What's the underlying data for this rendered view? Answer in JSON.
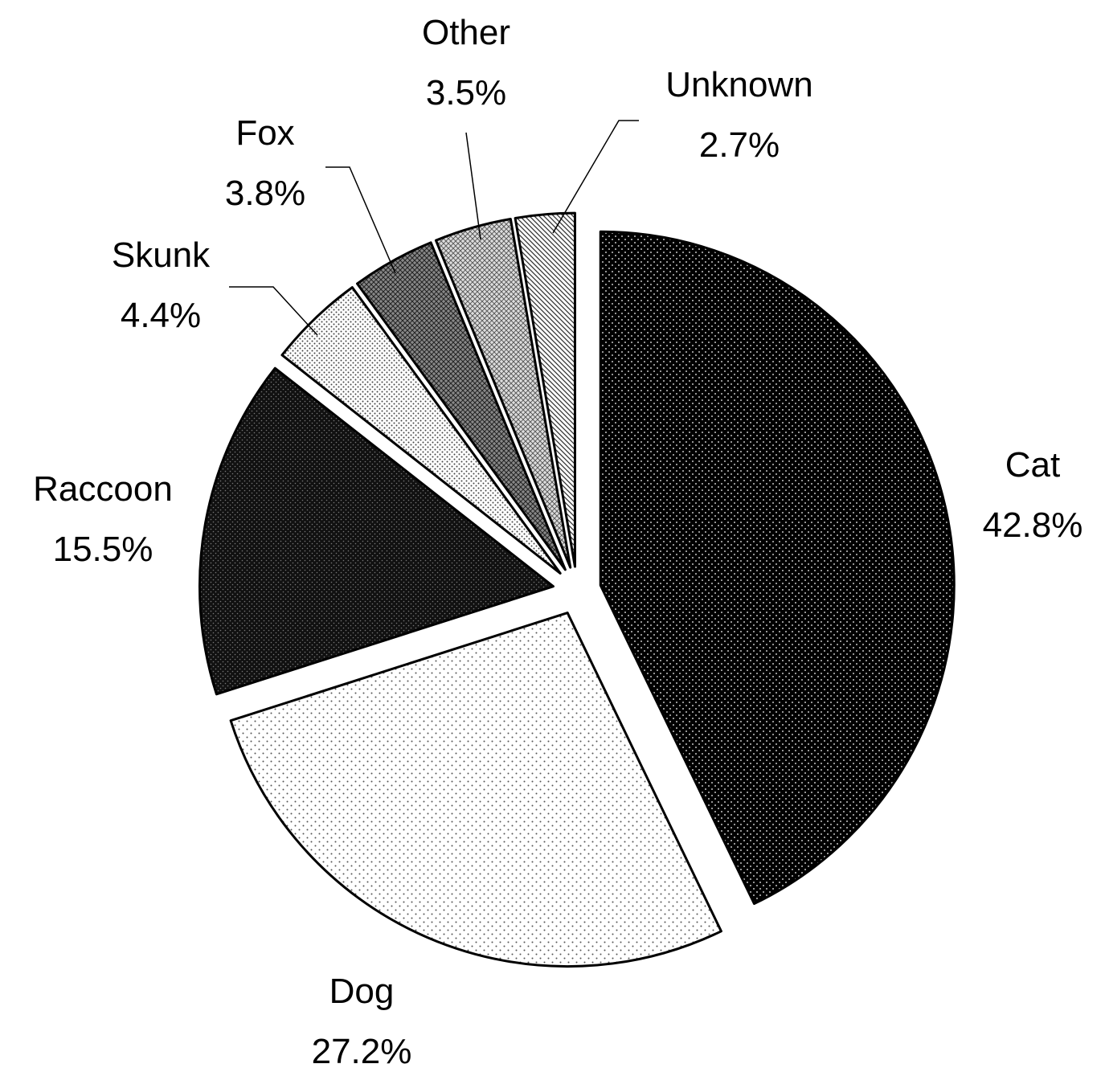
{
  "chart_data": {
    "type": "pie",
    "exploded": true,
    "start_angle_deg": 0,
    "direction": "clockwise",
    "slices": [
      {
        "label": "Cat",
        "value": 42.8,
        "value_label": "42.8%",
        "pattern": "fine-dots-on-black"
      },
      {
        "label": "Dog",
        "value": 27.2,
        "value_label": "27.2%",
        "pattern": "dots-on-white"
      },
      {
        "label": "Raccoon",
        "value": 15.5,
        "value_label": "15.5%",
        "pattern": "dense-dots-dark"
      },
      {
        "label": "Skunk",
        "value": 4.4,
        "value_label": "4.4%",
        "pattern": "dots-light"
      },
      {
        "label": "Fox",
        "value": 3.8,
        "value_label": "3.8%",
        "pattern": "crosshatch-medium"
      },
      {
        "label": "Other",
        "value": 3.5,
        "value_label": "3.5%",
        "pattern": "diamond-light"
      },
      {
        "label": "Unknown",
        "value": 2.7,
        "value_label": "2.7%",
        "pattern": "diagonal-hatch"
      }
    ],
    "colors": [
      "#000000",
      "#ffffff",
      "#000000",
      "#ffffff",
      "#555555",
      "#aaaaaa",
      "#ffffff"
    ]
  }
}
